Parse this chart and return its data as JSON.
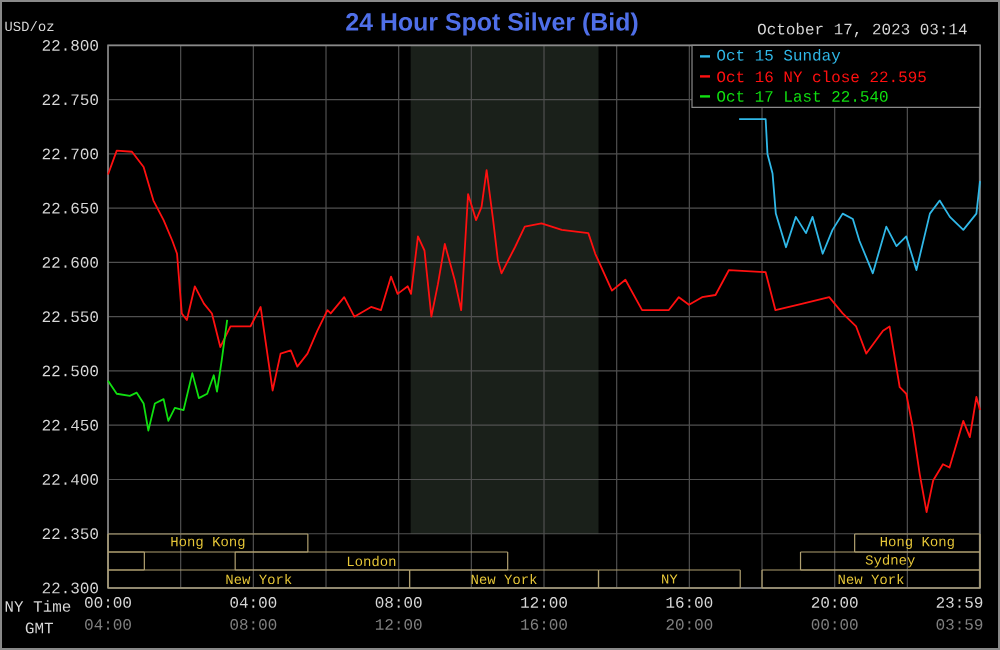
{
  "chart_data": {
    "type": "line",
    "annotations": [
      "Hong Kong",
      "London",
      "New York",
      "New York",
      "NY",
      "New York",
      "Sydney",
      "Hong Kong"
    ],
    "title": "24 Hour Spot Silver (Bid)",
    "subtitle": "October 17, 2023 03:14",
    "ylabel": "USD/oz",
    "xlabel": "NY Time",
    "x2label": "GMT",
    "xlim": [
      0,
      24
    ],
    "ylim": [
      22.3,
      22.8
    ],
    "x2lim": [
      "2023-10-16T04:00",
      "2023-10-17T04:00"
    ],
    "xticks": [
      {
        "value": 0,
        "label": "00:00"
      },
      {
        "value": 2,
        "label": null
      },
      {
        "value": 4,
        "label": "04:00"
      },
      {
        "value": 6,
        "label": null
      },
      {
        "value": 8,
        "label": "08:00"
      },
      {
        "value": 10,
        "label": null
      },
      {
        "value": 12,
        "label": "12:00"
      },
      {
        "value": 14,
        "label": null
      },
      {
        "value": 16,
        "label": "16:00"
      },
      {
        "value": 18,
        "label": null
      },
      {
        "value": 20,
        "label": "20:00"
      },
      {
        "value": 22,
        "label": null
      },
      {
        "value": 23.983,
        "label": "23:59"
      }
    ],
    "x2ticks": [
      {
        "value": "2023-10-16T04:00",
        "label": "04:00"
      },
      {
        "value": "2023-10-16T08:00",
        "label": "08:00"
      },
      {
        "value": "2023-10-16T12:00",
        "label": "12:00"
      },
      {
        "value": "2023-10-16T16:00",
        "label": "16:00"
      },
      {
        "value": "2023-10-16T20:00",
        "label": "20:00"
      },
      {
        "value": "2023-10-17T00:00",
        "label": "00:00"
      },
      {
        "value": "2023-10-17T03:59",
        "label": "03:59"
      }
    ],
    "yticks": [
      {
        "value": 22.3,
        "label": "22.300"
      },
      {
        "value": 22.35,
        "label": "22.350"
      },
      {
        "value": 22.4,
        "label": "22.400"
      },
      {
        "value": 22.45,
        "label": "22.450"
      },
      {
        "value": 22.5,
        "label": "22.500"
      },
      {
        "value": 22.55,
        "label": "22.550"
      },
      {
        "value": 22.6,
        "label": "22.600"
      },
      {
        "value": 22.65,
        "label": "22.650"
      },
      {
        "value": 22.7,
        "label": "22.700"
      },
      {
        "value": 22.75,
        "label": "22.750"
      },
      {
        "value": 22.8,
        "label": "22.800"
      }
    ],
    "grid": true,
    "legend": "top right",
    "bands": [
      {
        "axis": "x",
        "from": 8.33,
        "to": 13.5,
        "color": "#1a201a"
      }
    ],
    "series": [
      {
        "name": "Oct 15 Sunday",
        "color": "#30b8e8",
        "x": [
          17.37,
          18.1,
          18.15,
          18.29,
          18.38,
          18.66,
          18.93,
          19.21,
          19.39,
          19.67,
          19.94,
          20.22,
          20.5,
          20.68,
          21.05,
          21.42,
          21.7,
          21.97,
          22.25,
          22.62,
          22.89,
          23.17,
          23.54,
          23.9,
          24
        ],
        "values": [
          22.732,
          22.732,
          22.7,
          22.682,
          22.645,
          22.614,
          22.642,
          22.627,
          22.642,
          22.608,
          22.63,
          22.645,
          22.64,
          22.62,
          22.59,
          22.633,
          22.615,
          22.624,
          22.593,
          22.645,
          22.657,
          22.642,
          22.63,
          22.645,
          22.675
        ]
      },
      {
        "name": "Oct 16 NY close 22.595",
        "color": "#ff1010",
        "x": [
          0,
          0.24,
          0.66,
          0.98,
          1.25,
          1.53,
          1.77,
          1.9,
          2.03,
          2.17,
          2.39,
          2.64,
          2.86,
          3.09,
          3.37,
          3.92,
          4.2,
          4.53,
          4.75,
          5.03,
          5.21,
          5.49,
          5.76,
          6.04,
          6.13,
          6.5,
          6.78,
          7.24,
          7.51,
          7.79,
          7.97,
          8.25,
          8.34,
          8.53,
          8.71,
          8.9,
          9.08,
          9.27,
          9.54,
          9.72,
          9.91,
          10.13,
          10.28,
          10.42,
          10.6,
          10.73,
          10.83,
          11.2,
          11.47,
          11.93,
          12.49,
          13.22,
          13.41,
          13.87,
          14.24,
          14.7,
          15.43,
          15.71,
          15.99,
          16.35,
          16.72,
          17.09,
          18.1,
          18.37,
          19.12,
          19.85,
          20.22,
          20.59,
          20.87,
          21.33,
          21.51,
          21.79,
          21.97,
          22.15,
          22.34,
          22.53,
          22.71,
          22.98,
          23.16,
          23.54,
          23.72,
          23.9,
          24
        ],
        "values": [
          22.681,
          22.703,
          22.702,
          22.688,
          22.657,
          22.639,
          22.62,
          22.608,
          22.553,
          22.547,
          22.578,
          22.562,
          22.553,
          22.522,
          22.541,
          22.541,
          22.559,
          22.482,
          22.516,
          22.519,
          22.504,
          22.516,
          22.537,
          22.556,
          22.553,
          22.568,
          22.55,
          22.559,
          22.556,
          22.587,
          22.571,
          22.578,
          22.571,
          22.624,
          22.611,
          22.55,
          22.58,
          22.617,
          22.584,
          22.556,
          22.663,
          22.639,
          22.651,
          22.685,
          22.639,
          22.602,
          22.59,
          22.614,
          22.633,
          22.636,
          22.63,
          22.627,
          22.608,
          22.574,
          22.584,
          22.556,
          22.556,
          22.568,
          22.561,
          22.568,
          22.57,
          22.593,
          22.591,
          22.556,
          22.562,
          22.568,
          22.553,
          22.541,
          22.516,
          22.537,
          22.541,
          22.485,
          22.479,
          22.448,
          22.405,
          22.37,
          22.399,
          22.414,
          22.411,
          22.454,
          22.439,
          22.476,
          22.464
        ]
      },
      {
        "name": "Oct 17 Last 22.540",
        "color": "#10e010",
        "x": [
          0,
          0.24,
          0.6,
          0.79,
          0.98,
          1.11,
          1.29,
          1.53,
          1.66,
          1.84,
          2.08,
          2.32,
          2.5,
          2.73,
          2.91,
          3.0,
          3.13,
          3.28
        ],
        "values": [
          22.491,
          22.479,
          22.477,
          22.48,
          22.47,
          22.445,
          22.47,
          22.474,
          22.454,
          22.466,
          22.464,
          22.498,
          22.475,
          22.479,
          22.496,
          22.481,
          22.51,
          22.547
        ]
      }
    ]
  }
}
